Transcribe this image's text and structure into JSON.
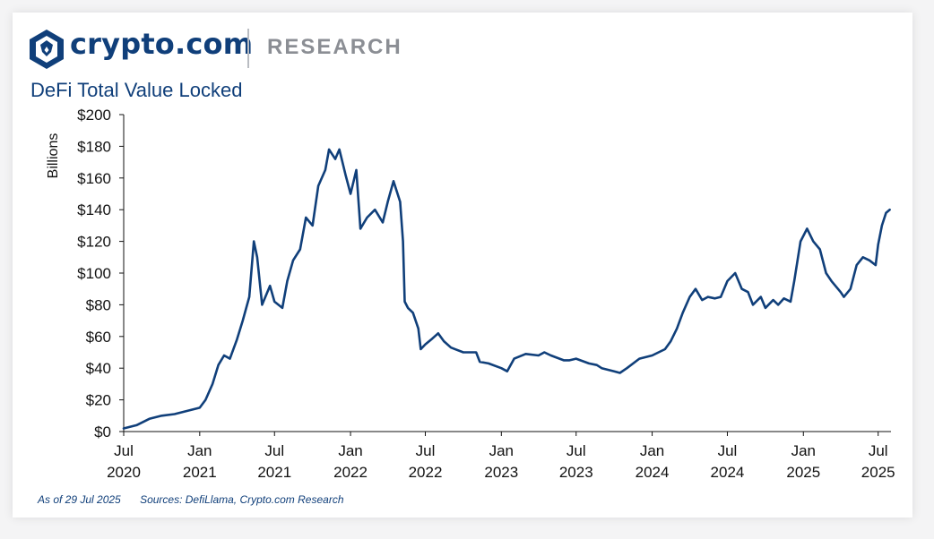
{
  "brand": {
    "name": "crypto.com",
    "section": "RESEARCH",
    "logo_icon": "crypto-com-lion-shield-icon",
    "color": "#103f7a"
  },
  "footnote": {
    "as_of": "As of 29 Jul 2025",
    "sources": "Sources: DefiLlama, Crypto.com Research"
  },
  "chart_data": {
    "type": "line",
    "title": "DeFi Total Value Locked",
    "xlabel": "",
    "ylabel": "Billions",
    "ylim": [
      0,
      200
    ],
    "xlim": [
      "2020-07-01",
      "2025-08-01"
    ],
    "grid": false,
    "line_color": "#103f7a",
    "y_ticks": [
      {
        "value": 0,
        "label": "$0"
      },
      {
        "value": 20,
        "label": "$20"
      },
      {
        "value": 40,
        "label": "$40"
      },
      {
        "value": 60,
        "label": "$60"
      },
      {
        "value": 80,
        "label": "$80"
      },
      {
        "value": 100,
        "label": "$100"
      },
      {
        "value": 120,
        "label": "$120"
      },
      {
        "value": 140,
        "label": "$140"
      },
      {
        "value": 160,
        "label": "$160"
      },
      {
        "value": 180,
        "label": "$180"
      },
      {
        "value": 200,
        "label": "$200"
      }
    ],
    "x_ticks": [
      {
        "date": "2020-07-01",
        "line1": "Jul",
        "line2": "2020"
      },
      {
        "date": "2021-01-01",
        "line1": "Jan",
        "line2": "2021"
      },
      {
        "date": "2021-07-01",
        "line1": "Jul",
        "line2": "2021"
      },
      {
        "date": "2022-01-01",
        "line1": "Jan",
        "line2": "2022"
      },
      {
        "date": "2022-07-01",
        "line1": "Jul",
        "line2": "2022"
      },
      {
        "date": "2023-01-01",
        "line1": "Jan",
        "line2": "2023"
      },
      {
        "date": "2023-07-01",
        "line1": "Jul",
        "line2": "2023"
      },
      {
        "date": "2024-01-01",
        "line1": "Jan",
        "line2": "2024"
      },
      {
        "date": "2024-07-01",
        "line1": "Jul",
        "line2": "2024"
      },
      {
        "date": "2025-01-01",
        "line1": "Jan",
        "line2": "2025"
      },
      {
        "date": "2025-07-01",
        "line1": "Jul",
        "line2": "2025"
      }
    ],
    "series": [
      {
        "x": [
          "2020-07-01",
          "2020-08-01",
          "2020-09-01",
          "2020-10-01",
          "2020-11-01",
          "2020-12-01",
          "2021-01-01",
          "2021-01-15",
          "2021-02-01",
          "2021-02-15",
          "2021-03-01",
          "2021-03-15",
          "2021-04-01",
          "2021-04-15",
          "2021-05-01",
          "2021-05-12",
          "2021-05-20",
          "2021-06-01",
          "2021-06-20",
          "2021-07-01",
          "2021-07-20",
          "2021-08-01",
          "2021-08-15",
          "2021-09-01",
          "2021-09-15",
          "2021-10-01",
          "2021-10-15",
          "2021-11-01",
          "2021-11-10",
          "2021-11-25",
          "2021-12-05",
          "2021-12-20",
          "2022-01-01",
          "2022-01-15",
          "2022-01-25",
          "2022-02-10",
          "2022-03-01",
          "2022-03-20",
          "2022-04-01",
          "2022-04-15",
          "2022-05-01",
          "2022-05-08",
          "2022-05-12",
          "2022-05-20",
          "2022-06-01",
          "2022-06-14",
          "2022-06-20",
          "2022-07-01",
          "2022-07-15",
          "2022-08-01",
          "2022-08-15",
          "2022-09-01",
          "2022-10-01",
          "2022-11-01",
          "2022-11-10",
          "2022-12-01",
          "2023-01-01",
          "2023-01-15",
          "2023-02-01",
          "2023-03-01",
          "2023-04-01",
          "2023-04-15",
          "2023-05-01",
          "2023-06-01",
          "2023-06-15",
          "2023-07-01",
          "2023-08-01",
          "2023-08-20",
          "2023-09-01",
          "2023-10-01",
          "2023-10-15",
          "2023-11-01",
          "2023-12-01",
          "2024-01-01",
          "2024-02-01",
          "2024-02-15",
          "2024-03-01",
          "2024-03-15",
          "2024-04-01",
          "2024-04-15",
          "2024-05-01",
          "2024-05-15",
          "2024-06-01",
          "2024-06-15",
          "2024-07-01",
          "2024-07-20",
          "2024-08-05",
          "2024-08-20",
          "2024-09-01",
          "2024-09-20",
          "2024-10-01",
          "2024-10-20",
          "2024-11-01",
          "2024-11-15",
          "2024-12-01",
          "2024-12-10",
          "2024-12-25",
          "2025-01-10",
          "2025-01-25",
          "2025-02-10",
          "2025-02-25",
          "2025-03-10",
          "2025-04-01",
          "2025-04-09",
          "2025-04-25",
          "2025-05-10",
          "2025-05-25",
          "2025-06-10",
          "2025-06-25",
          "2025-07-01",
          "2025-07-10",
          "2025-07-20",
          "2025-07-29"
        ],
        "values": [
          2,
          4,
          8,
          10,
          11,
          13,
          15,
          20,
          30,
          42,
          48,
          46,
          58,
          70,
          85,
          120,
          110,
          80,
          92,
          82,
          78,
          95,
          108,
          115,
          135,
          130,
          155,
          165,
          178,
          172,
          178,
          162,
          150,
          165,
          128,
          135,
          140,
          132,
          145,
          158,
          145,
          120,
          82,
          78,
          75,
          65,
          52,
          55,
          58,
          62,
          57,
          53,
          50,
          50,
          44,
          43,
          40,
          38,
          46,
          49,
          48,
          50,
          48,
          45,
          45,
          46,
          43,
          42,
          40,
          38,
          37,
          40,
          46,
          48,
          52,
          57,
          65,
          75,
          85,
          90,
          83,
          85,
          84,
          85,
          95,
          100,
          90,
          88,
          80,
          85,
          78,
          83,
          80,
          84,
          82,
          95,
          120,
          128,
          120,
          115,
          100,
          95,
          88,
          85,
          90,
          105,
          110,
          108,
          105,
          118,
          130,
          138,
          140
        ]
      }
    ]
  }
}
